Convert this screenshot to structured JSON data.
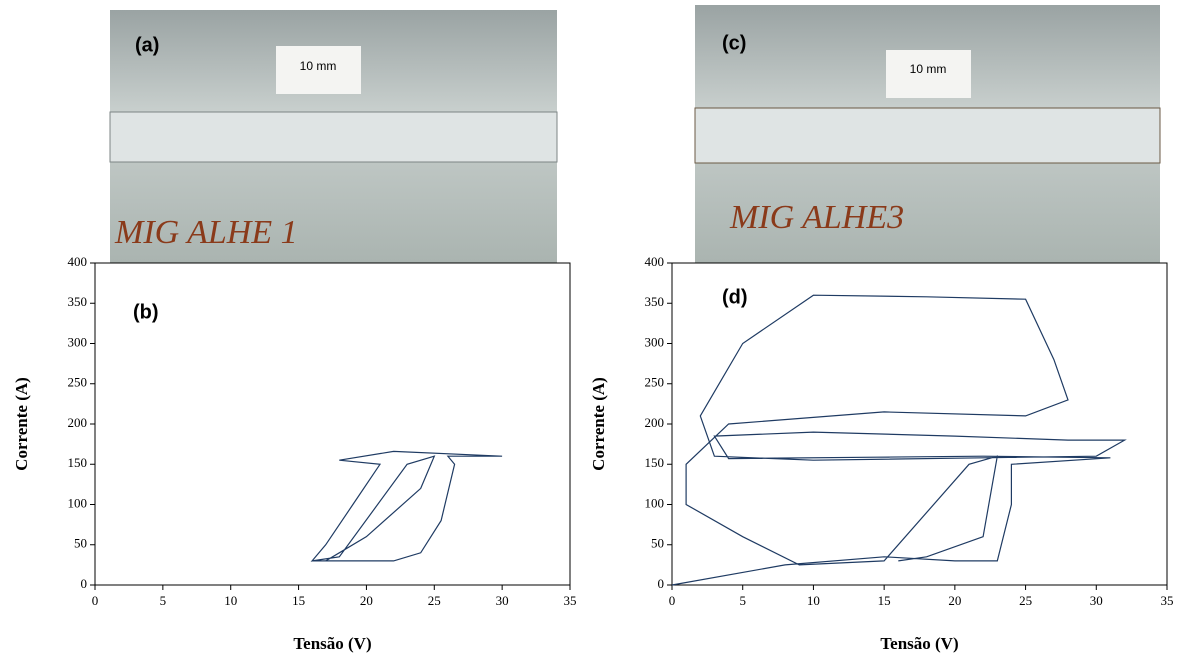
{
  "photos": [
    {
      "label": "(a)",
      "scale": "10 mm",
      "marking": "MIG ALHE 1"
    },
    {
      "label": "(c)",
      "scale": "10 mm",
      "marking": "MIG ALHE3"
    }
  ],
  "chart_data": [
    {
      "type": "line",
      "annotation": "(b)",
      "x_label": "Tensão (V)",
      "y_label": "Corrente (A)",
      "xlim": [
        0,
        35
      ],
      "ylim": [
        0,
        400
      ],
      "xticks": [
        0,
        5,
        10,
        15,
        20,
        25,
        30,
        35
      ],
      "yticks": [
        0,
        50,
        100,
        150,
        200,
        250,
        300,
        350,
        400
      ],
      "color": "#1f3b63",
      "x": [
        16,
        22,
        24,
        25.5,
        26.5,
        26,
        30,
        22,
        18,
        21,
        19,
        17,
        16,
        18,
        23,
        25,
        24,
        20,
        18,
        17
      ],
      "values": [
        30,
        30,
        40,
        80,
        150,
        160,
        160,
        166,
        155,
        150,
        100,
        50,
        30,
        35,
        150,
        160,
        120,
        60,
        40,
        30
      ]
    },
    {
      "type": "line",
      "annotation": "(d)",
      "x_label": "Tensão (V)",
      "y_label": "Corrente (A)",
      "xlim": [
        0,
        35
      ],
      "ylim": [
        0,
        400
      ],
      "xticks": [
        0,
        5,
        10,
        15,
        20,
        25,
        30,
        35
      ],
      "yticks": [
        0,
        50,
        100,
        150,
        200,
        250,
        300,
        350,
        400
      ],
      "color": "#1f3b63",
      "x": [
        0,
        8,
        15,
        20,
        23,
        24,
        24,
        31,
        22,
        4,
        3,
        10,
        20,
        28,
        32,
        30,
        22,
        10,
        3,
        2,
        5,
        10,
        18,
        25,
        27,
        28,
        25,
        15,
        4,
        1,
        1,
        5,
        9,
        15,
        21,
        23,
        22,
        18,
        16
      ],
      "values": [
        0,
        25,
        35,
        30,
        30,
        100,
        150,
        158,
        160,
        157,
        185,
        190,
        185,
        180,
        180,
        160,
        158,
        155,
        160,
        210,
        300,
        360,
        358,
        355,
        280,
        230,
        210,
        215,
        200,
        150,
        100,
        60,
        25,
        30,
        150,
        160,
        60,
        35,
        30
      ]
    }
  ]
}
